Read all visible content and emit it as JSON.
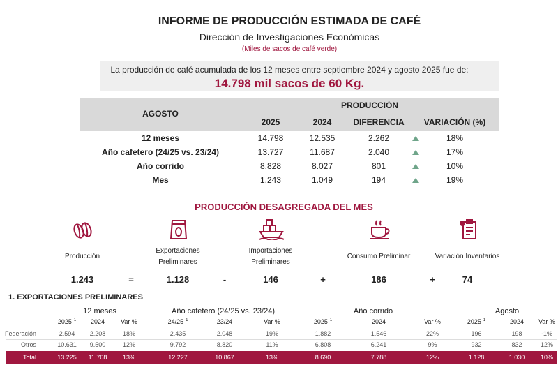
{
  "header": {
    "title": "INFORME DE PRODUCCIÓN ESTIMADA DE CAFÉ",
    "subtitle": "Dirección de Investigaciones Económicas",
    "unit_note": "(Miles de sacos de café verde)"
  },
  "summary": {
    "text": "La producción de café acumulada de los 12 meses entre septiembre 2024 y agosto 2025 fue de:",
    "highlight": "14.798 mil sacos de 60 Kg."
  },
  "production_table": {
    "group_header": "AGOSTO",
    "production_header": "PRODUCCIÓN",
    "columns": [
      "2025",
      "2024",
      "DIFERENCIA",
      "VARIACIÓN (%)"
    ],
    "rows": [
      {
        "label": "12 meses",
        "values": [
          "14.798",
          "12.535",
          "2.262",
          "18%"
        ]
      },
      {
        "label": "Año cafetero (24/25 vs. 23/24)",
        "values": [
          "13.727",
          "11.687",
          "2.040",
          "17%"
        ]
      },
      {
        "label": "Año corrido",
        "values": [
          "8.828",
          "8.027",
          "801",
          "10%"
        ]
      },
      {
        "label": "Mes",
        "values": [
          "1.243",
          "1.049",
          "194",
          "19%"
        ]
      }
    ]
  },
  "breakdown": {
    "title": "PRODUCCIÓN DESAGREGADA DEL MES",
    "items": [
      {
        "label": "Producción",
        "value": "1.243"
      },
      {
        "label": "Exportaciones Preliminares",
        "value": "1.128"
      },
      {
        "label": "Importaciones Preliminares",
        "value": "146"
      },
      {
        "label": "Consumo Preliminar",
        "value": "186"
      },
      {
        "label": "Variación Inventarios",
        "value": "74"
      }
    ],
    "operators": [
      "=",
      "-",
      "+",
      "+"
    ]
  },
  "exports": {
    "title": "1. EXPORTACIONES PRELIMINARES",
    "groups": [
      {
        "name": "12 meses",
        "columns": [
          "2025",
          "2024",
          "Var %"
        ],
        "footnote": "1"
      },
      {
        "name": "Año cafetero (24/25 vs. 23/24)",
        "columns": [
          "24/25",
          "23/24",
          "Var %"
        ],
        "footnote": "1"
      },
      {
        "name": "Año corrido",
        "columns": [
          "2025",
          "2024",
          "Var %"
        ],
        "footnote": "1"
      },
      {
        "name": "Agosto",
        "columns": [
          "2025",
          "2024",
          "Var %"
        ],
        "footnote": "1"
      }
    ],
    "rows": [
      {
        "label": "Federación",
        "values": [
          "2.594",
          "2.208",
          "18%",
          "2.435",
          "2.048",
          "19%",
          "1.882",
          "1.546",
          "22%",
          "196",
          "198",
          "-1%"
        ]
      },
      {
        "label": "Otros",
        "values": [
          "10.631",
          "9.500",
          "12%",
          "9.792",
          "8.820",
          "11%",
          "6.808",
          "6.241",
          "9%",
          "932",
          "832",
          "12%"
        ]
      },
      {
        "label": "Total",
        "values": [
          "13.225",
          "11.708",
          "13%",
          "12.227",
          "10.867",
          "13%",
          "8.690",
          "7.788",
          "12%",
          "1.128",
          "1.030",
          "10%"
        ]
      }
    ]
  }
}
